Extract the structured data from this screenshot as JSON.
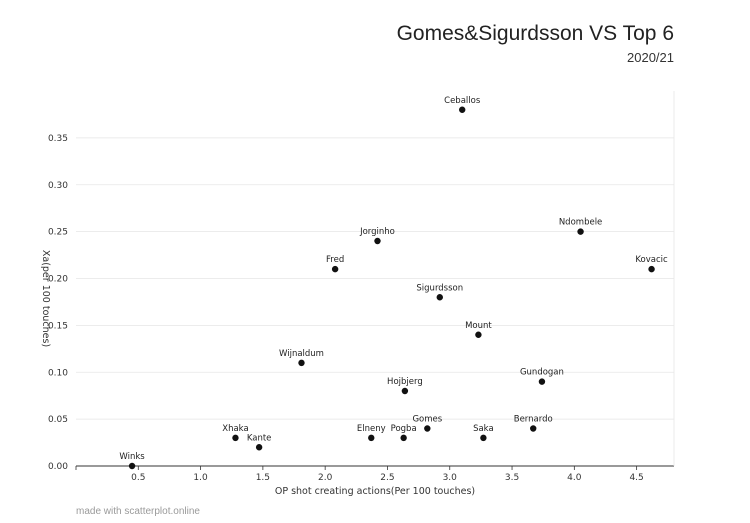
{
  "chart_data": {
    "type": "scatter",
    "title": "Gomes&Sigurdsson VS Top 6",
    "subtitle": "2020/21",
    "xlabel": "OP shot creating actions(Per 100 touches)",
    "ylabel": "Xa(per 100 touches)",
    "xlim": [
      0,
      4.8
    ],
    "ylim": [
      0,
      0.4
    ],
    "xticks": [
      "0.5",
      "1.0",
      "1.5",
      "2.0",
      "2.5",
      "3.0",
      "3.5",
      "4.0",
      "4.5"
    ],
    "yticks": [
      "0.00",
      "0.05",
      "0.10",
      "0.15",
      "0.20",
      "0.25",
      "0.30",
      "0.35"
    ],
    "grid": true,
    "points": [
      {
        "label": "Ceballos",
        "x": 3.1,
        "y": 0.38
      },
      {
        "label": "Ndombele",
        "x": 4.05,
        "y": 0.25
      },
      {
        "label": "Kovacic",
        "x": 4.62,
        "y": 0.21
      },
      {
        "label": "Jorginho",
        "x": 2.42,
        "y": 0.24
      },
      {
        "label": "Fred",
        "x": 2.08,
        "y": 0.21
      },
      {
        "label": "Sigurdsson",
        "x": 2.92,
        "y": 0.18
      },
      {
        "label": "Mount",
        "x": 3.23,
        "y": 0.14
      },
      {
        "label": "Wijnaldum",
        "x": 1.81,
        "y": 0.11
      },
      {
        "label": "Gundogan",
        "x": 3.74,
        "y": 0.09
      },
      {
        "label": "Hojbjerg",
        "x": 2.64,
        "y": 0.08
      },
      {
        "label": "Gomes",
        "x": 2.82,
        "y": 0.04
      },
      {
        "label": "Bernardo",
        "x": 3.67,
        "y": 0.04
      },
      {
        "label": "Xhaka",
        "x": 1.28,
        "y": 0.03
      },
      {
        "label": "Elneny",
        "x": 2.37,
        "y": 0.03
      },
      {
        "label": "Pogba",
        "x": 2.63,
        "y": 0.03
      },
      {
        "label": "Saka",
        "x": 3.27,
        "y": 0.03
      },
      {
        "label": "Kante",
        "x": 1.47,
        "y": 0.02
      },
      {
        "label": "Winks",
        "x": 0.45,
        "y": 0.0
      }
    ]
  },
  "footer": "made with scatterplot.online"
}
